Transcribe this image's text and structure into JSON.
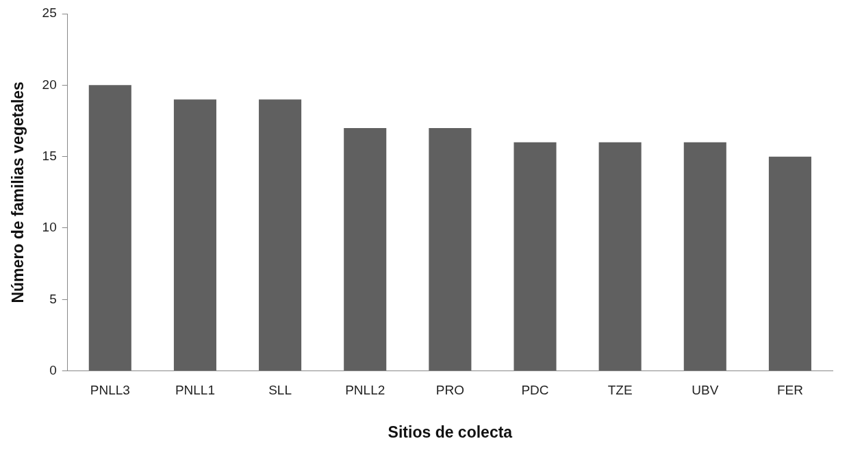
{
  "chart_data": {
    "type": "bar",
    "xlabel": "Sitios de colecta",
    "ylabel": "Número de familias vegetales",
    "categories": [
      "PNLL3",
      "PNLL1",
      "SLL",
      "PNLL2",
      "PRO",
      "PDC",
      "TZE",
      "UBV",
      "FER"
    ],
    "values": [
      20,
      19,
      19,
      17,
      17,
      16,
      16,
      16,
      15
    ],
    "color": "#606060",
    "ylim": [
      0,
      25
    ],
    "yticks": [
      0,
      5,
      10,
      15,
      20,
      25
    ],
    "grid": false,
    "legend": false
  }
}
